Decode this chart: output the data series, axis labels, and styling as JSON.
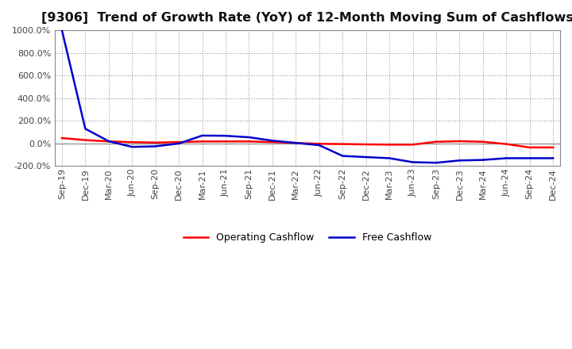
{
  "title": "[9306]  Trend of Growth Rate (YoY) of 12-Month Moving Sum of Cashflows",
  "x_labels": [
    "Sep-19",
    "Dec-19",
    "Mar-20",
    "Jun-20",
    "Sep-20",
    "Dec-20",
    "Mar-21",
    "Jun-21",
    "Sep-21",
    "Dec-21",
    "Mar-22",
    "Jun-22",
    "Sep-22",
    "Dec-22",
    "Mar-23",
    "Jun-23",
    "Sep-23",
    "Dec-23",
    "Mar-24",
    "Jun-24",
    "Sep-24",
    "Dec-24"
  ],
  "operating_cashflow": [
    48,
    30,
    18,
    12,
    8,
    12,
    18,
    18,
    18,
    12,
    5,
    -3,
    -5,
    -8,
    -10,
    -10,
    15,
    20,
    15,
    -5,
    -35,
    -35
  ],
  "free_cashflow": [
    1000,
    130,
    20,
    -30,
    -25,
    0,
    70,
    68,
    55,
    25,
    5,
    -15,
    -110,
    -120,
    -130,
    -165,
    -170,
    -150,
    -145,
    -130,
    -130,
    -130
  ],
  "op_color": "#ff0000",
  "fc_color": "#0000cc",
  "ylim": [
    -200,
    1000
  ],
  "yticks": [
    -200,
    0,
    200,
    400,
    600,
    800,
    1000
  ],
  "background_color": "#ffffff",
  "grid_color": "#999999",
  "title_fontsize": 11.5,
  "legend_fontsize": 9,
  "tick_fontsize": 8
}
